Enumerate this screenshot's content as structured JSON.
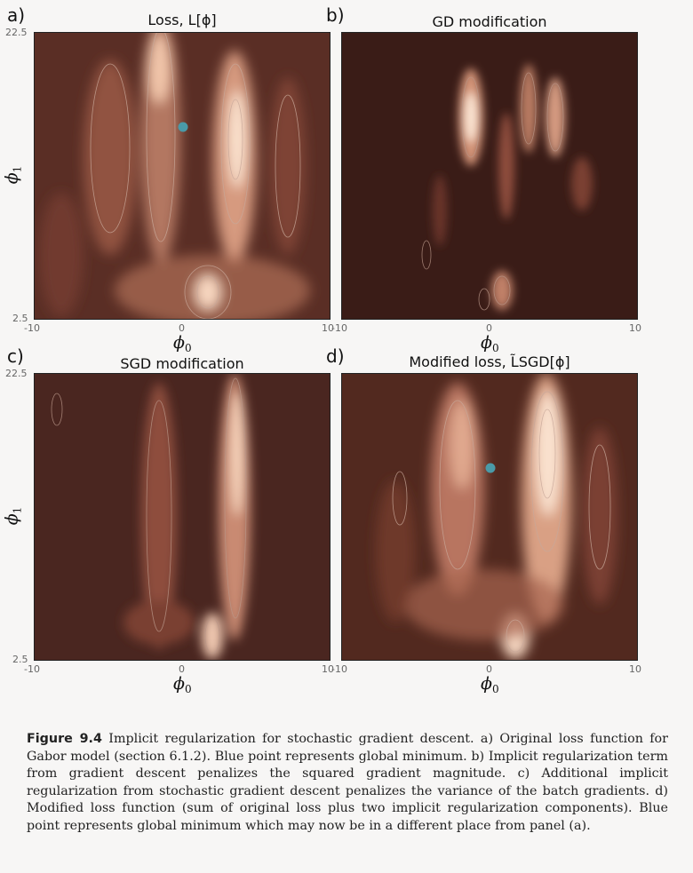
{
  "panels": [
    {
      "letter": "a)",
      "title": "Loss, L[ϕ]",
      "has_min_point": true
    },
    {
      "letter": "b)",
      "title": "GD modification",
      "has_min_point": false
    },
    {
      "letter": "c)",
      "title": "SGD modification",
      "has_min_point": false
    },
    {
      "letter": "d)",
      "title": "Modified loss, L̃SGD[ϕ]",
      "has_min_point": true
    }
  ],
  "axes": {
    "x_label": "ϕ",
    "x_label_sub": "0",
    "y_label": "ϕ",
    "y_label_sub": "1",
    "x_ticks": {
      "left": "-10",
      "mid": "0",
      "right": "10"
    },
    "y_ticks": {
      "top": "22.5",
      "bottom": "2.5"
    }
  },
  "colors": {
    "dark": "#3d1f1a",
    "light": "#fbe8d8",
    "point": "#4a9aa8"
  },
  "caption": {
    "label": "Figure 9.4",
    "text": "Implicit regularization for stochastic gradient descent. a) Original loss function for Gabor model (section 6.1.2). Blue point represents global minimum. b) Implicit regularization term from gradient descent penalizes the squared gradient magnitude. c) Additional implicit regularization from stochastic gradient descent penalizes the variance of the batch gradients. d) Modified loss function (sum of original loss plus two implicit regularization components). Blue point represents global minimum which may now be in a different place from panel (a)."
  }
}
